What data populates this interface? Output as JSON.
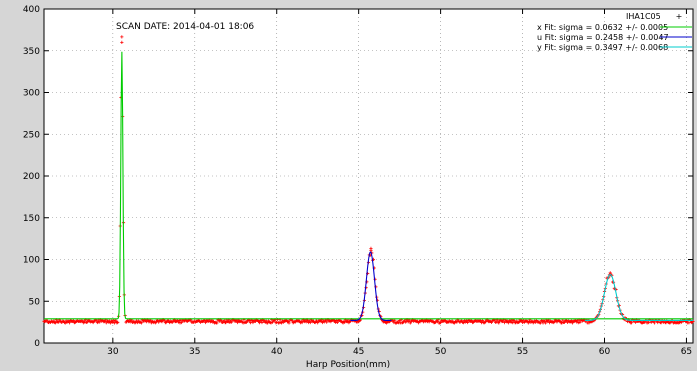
{
  "chart_data": {
    "type": "scatter",
    "title": "",
    "xlabel": "Harp Position(mm)",
    "ylabel": "",
    "annotation": "SCAN DATE: 2014-04-01   18:06",
    "xlim": [
      25.8,
      65.4
    ],
    "ylim": [
      0,
      400
    ],
    "xticks": [
      "30",
      "35",
      "40",
      "45",
      "50",
      "55",
      "60",
      "65"
    ],
    "yticks": [
      "0",
      "50",
      "100",
      "150",
      "200",
      "250",
      "300",
      "350",
      "400"
    ],
    "grid": true,
    "legend_position": "top-right",
    "colors": {
      "background": "#d6d6d6",
      "plot_bg": "#ffffff",
      "data": "#ff0000",
      "x_fit": "#00cc00",
      "u_fit": "#0000cc",
      "y_fit": "#00cccc"
    },
    "data_series": {
      "name": "IHA1C05",
      "baseline": 26,
      "noise": 2,
      "peaks": [
        {
          "center": 30.55,
          "sigma": 0.07,
          "amplitude": 330,
          "max_point": 360
        },
        {
          "center": 45.75,
          "sigma": 0.25,
          "amplitude": 84,
          "max_point": 111
        },
        {
          "center": 60.35,
          "sigma": 0.36,
          "amplitude": 56,
          "max_point": 84
        }
      ]
    },
    "series": [
      {
        "name": "x  Fit: sigma = 0.0632 +/- 0.0005",
        "center": 30.55,
        "sigma": 0.0632,
        "amplitude": 320,
        "baseline": 29,
        "range": [
          25.8,
          65.4
        ]
      },
      {
        "name": "u  Fit: sigma = 0.2458 +/- 0.0047",
        "center": 45.72,
        "sigma": 0.2458,
        "amplitude": 82,
        "baseline": 27,
        "range": [
          44.5,
          47.0
        ]
      },
      {
        "name": "y  Fit: sigma = 0.3497 +/- 0.0068",
        "center": 60.35,
        "sigma": 0.3497,
        "amplitude": 55,
        "baseline": 27,
        "range": [
          58.8,
          65.4
        ]
      }
    ]
  }
}
